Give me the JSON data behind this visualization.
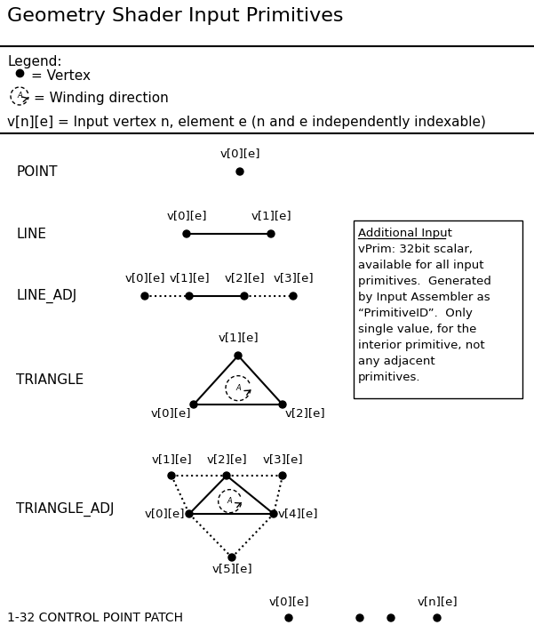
{
  "title": "Geometry Shader Input Primitives",
  "bg_color": "#ffffff",
  "text_color": "#000000",
  "legend_vertex_label": "= Vertex",
  "legend_winding_label": "= Winding direction",
  "formula_label": "v[n][e] = Input vertex n, element e (n and e independently indexable)",
  "primitives": [
    "POINT",
    "LINE",
    "LINE_ADJ",
    "TRIANGLE",
    "TRIANGLE_ADJ",
    "1-32 CONTROL POINT PATCH"
  ],
  "additional_input_title": "Additional Input",
  "additional_input_body": [
    "vPrim: 32bit scalar,",
    "available for all input",
    "primitives.  Generated",
    "by Input Assembler as",
    "“PrimitiveID”.  Only",
    "single value, for the",
    "interior primitive, not",
    "any adjacent",
    "primitives."
  ]
}
